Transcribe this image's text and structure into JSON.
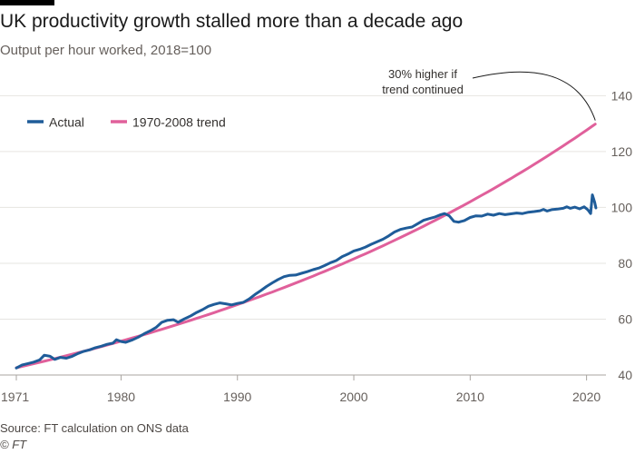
{
  "title": "UK productivity growth stalled more than a decade ago",
  "subtitle": "Output per hour worked, 2018=100",
  "source": "Source: FT calculation on ONS data",
  "credit": "© FT",
  "colors": {
    "actual": "#1f5c99",
    "trend": "#e0609b",
    "grid": "#e6e4e1",
    "text": "#33302e",
    "muted": "#66605c"
  },
  "chart_data": {
    "type": "line",
    "title": "UK productivity growth stalled more than a decade ago",
    "subtitle": "Output per hour worked, 2018=100",
    "xlabel": "",
    "ylabel": "",
    "xlim": [
      1971,
      2021.2
    ],
    "ylim": [
      40,
      145
    ],
    "x_ticks": [
      1971,
      1980,
      1990,
      2000,
      2010,
      2020
    ],
    "y_ticks": [
      40,
      60,
      80,
      100,
      120,
      140
    ],
    "y_axis_side": "right",
    "grid": "horizontal",
    "legend_position": "top-left",
    "annotation": {
      "lines": [
        "30% higher if",
        "trend continued"
      ],
      "target": {
        "x": 2020.75,
        "y": 130.5
      }
    },
    "series": [
      {
        "name": "Actual",
        "color": "#1f5c99",
        "points": [
          [
            1971,
            42.5
          ],
          [
            1971.5,
            43.6
          ],
          [
            1972,
            44.1
          ],
          [
            1972.5,
            44.6
          ],
          [
            1973,
            45.4
          ],
          [
            1973.4,
            47.1
          ],
          [
            1973.9,
            46.7
          ],
          [
            1974.3,
            45.6
          ],
          [
            1974.8,
            46.3
          ],
          [
            1975.3,
            46.0
          ],
          [
            1975.8,
            46.7
          ],
          [
            1976.3,
            47.7
          ],
          [
            1976.8,
            48.5
          ],
          [
            1977.3,
            49.0
          ],
          [
            1977.8,
            49.8
          ],
          [
            1978.3,
            50.3
          ],
          [
            1978.8,
            51.0
          ],
          [
            1979.3,
            51.4
          ],
          [
            1979.6,
            52.6
          ],
          [
            1980,
            52.0
          ],
          [
            1980.4,
            51.7
          ],
          [
            1981,
            52.6
          ],
          [
            1981.5,
            53.6
          ],
          [
            1982,
            54.8
          ],
          [
            1982.5,
            55.8
          ],
          [
            1983,
            57.0
          ],
          [
            1983.5,
            58.9
          ],
          [
            1984,
            59.6
          ],
          [
            1984.5,
            59.8
          ],
          [
            1984.9,
            58.9
          ],
          [
            1985.4,
            60.0
          ],
          [
            1986,
            61.2
          ],
          [
            1986.5,
            62.4
          ],
          [
            1987,
            63.4
          ],
          [
            1987.5,
            64.6
          ],
          [
            1988,
            65.3
          ],
          [
            1988.5,
            65.8
          ],
          [
            1989,
            65.5
          ],
          [
            1989.5,
            65.1
          ],
          [
            1990,
            65.6
          ],
          [
            1990.5,
            66.0
          ],
          [
            1991,
            67.2
          ],
          [
            1991.5,
            68.8
          ],
          [
            1992,
            70.2
          ],
          [
            1992.5,
            71.7
          ],
          [
            1993,
            73.0
          ],
          [
            1993.5,
            74.2
          ],
          [
            1994,
            75.2
          ],
          [
            1994.5,
            75.7
          ],
          [
            1995,
            75.8
          ],
          [
            1995.5,
            76.4
          ],
          [
            1996,
            77.0
          ],
          [
            1996.5,
            77.7
          ],
          [
            1997,
            78.3
          ],
          [
            1997.5,
            79.2
          ],
          [
            1998,
            80.2
          ],
          [
            1998.5,
            81.0
          ],
          [
            1999,
            82.4
          ],
          [
            1999.5,
            83.3
          ],
          [
            2000,
            84.4
          ],
          [
            2000.5,
            85.0
          ],
          [
            2001,
            85.8
          ],
          [
            2001.5,
            86.8
          ],
          [
            2002,
            87.7
          ],
          [
            2002.5,
            88.6
          ],
          [
            2003,
            89.8
          ],
          [
            2003.5,
            91.2
          ],
          [
            2004,
            92.1
          ],
          [
            2004.5,
            92.6
          ],
          [
            2005,
            93.0
          ],
          [
            2005.5,
            94.2
          ],
          [
            2006,
            95.4
          ],
          [
            2006.5,
            96.0
          ],
          [
            2007,
            96.6
          ],
          [
            2007.4,
            97.3
          ],
          [
            2007.8,
            97.8
          ],
          [
            2008.2,
            97.0
          ],
          [
            2008.6,
            95.0
          ],
          [
            2009,
            94.7
          ],
          [
            2009.5,
            95.3
          ],
          [
            2010,
            96.4
          ],
          [
            2010.5,
            97.0
          ],
          [
            2011,
            96.9
          ],
          [
            2011.5,
            97.6
          ],
          [
            2012,
            97.2
          ],
          [
            2012.5,
            97.8
          ],
          [
            2013,
            97.4
          ],
          [
            2013.5,
            97.7
          ],
          [
            2014,
            98.0
          ],
          [
            2014.5,
            97.8
          ],
          [
            2015,
            98.3
          ],
          [
            2015.5,
            98.5
          ],
          [
            2016,
            98.8
          ],
          [
            2016.3,
            99.3
          ],
          [
            2016.6,
            98.7
          ],
          [
            2017,
            99.2
          ],
          [
            2017.5,
            99.4
          ],
          [
            2018,
            99.7
          ],
          [
            2018.3,
            100.2
          ],
          [
            2018.6,
            99.7
          ],
          [
            2019,
            100.1
          ],
          [
            2019.4,
            99.5
          ],
          [
            2019.8,
            100.2
          ],
          [
            2020.1,
            99.2
          ],
          [
            2020.35,
            97.8
          ],
          [
            2020.5,
            104.5
          ],
          [
            2020.7,
            101.8
          ],
          [
            2020.8,
            99.8
          ]
        ]
      },
      {
        "name": "1970-2008 trend",
        "color": "#e0609b",
        "start": {
          "x": 1971,
          "y": 42.6
        },
        "annual_growth_rate": 0.02265,
        "end_x": 2020.75
      }
    ]
  }
}
